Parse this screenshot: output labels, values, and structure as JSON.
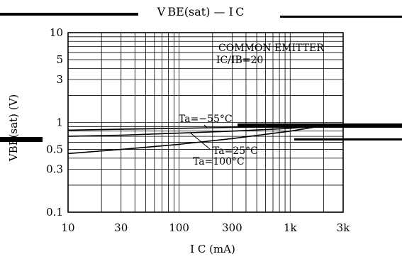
{
  "chart_data": {
    "type": "line",
    "title": "V BE(sat) — I C",
    "xlabel": "I C   (mA)",
    "ylabel": "VBE(sat)  (V)",
    "x_scale": "log",
    "y_scale": "log",
    "xlim": [
      10,
      3000
    ],
    "ylim": [
      0.1,
      10
    ],
    "grid": true,
    "x_tick_labels": [
      {
        "value": 10,
        "label": "10"
      },
      {
        "value": 30,
        "label": "30"
      },
      {
        "value": 100,
        "label": "100"
      },
      {
        "value": 300,
        "label": "300"
      },
      {
        "value": 1000,
        "label": "1k"
      },
      {
        "value": 3000,
        "label": "3k"
      }
    ],
    "y_tick_labels": [
      {
        "value": 0.1,
        "label": "0.1"
      },
      {
        "value": 0.3,
        "label": "0.3"
      },
      {
        "value": 0.5,
        "label": "0.5"
      },
      {
        "value": 1,
        "label": "1"
      },
      {
        "value": 3,
        "label": "3"
      },
      {
        "value": 5,
        "label": "5"
      },
      {
        "value": 10,
        "label": "10"
      }
    ],
    "annotations": {
      "circuit": "COMMON EMITTER",
      "condition": "IC/IB=20"
    },
    "series": [
      {
        "name": "Ta=−55°C",
        "x": [
          10,
          30,
          100,
          300,
          1000,
          2000
        ],
        "y": [
          0.82,
          0.84,
          0.86,
          0.88,
          0.9,
          0.92
        ]
      },
      {
        "name": "Ta=25°C",
        "x": [
          10,
          30,
          100,
          300,
          1000,
          2000
        ],
        "y": [
          0.7,
          0.72,
          0.76,
          0.8,
          0.86,
          0.92
        ]
      },
      {
        "name": "Ta=100°C",
        "x": [
          10,
          30,
          100,
          300,
          1000,
          2000
        ],
        "y": [
          0.45,
          0.5,
          0.57,
          0.66,
          0.8,
          0.92
        ]
      }
    ]
  }
}
